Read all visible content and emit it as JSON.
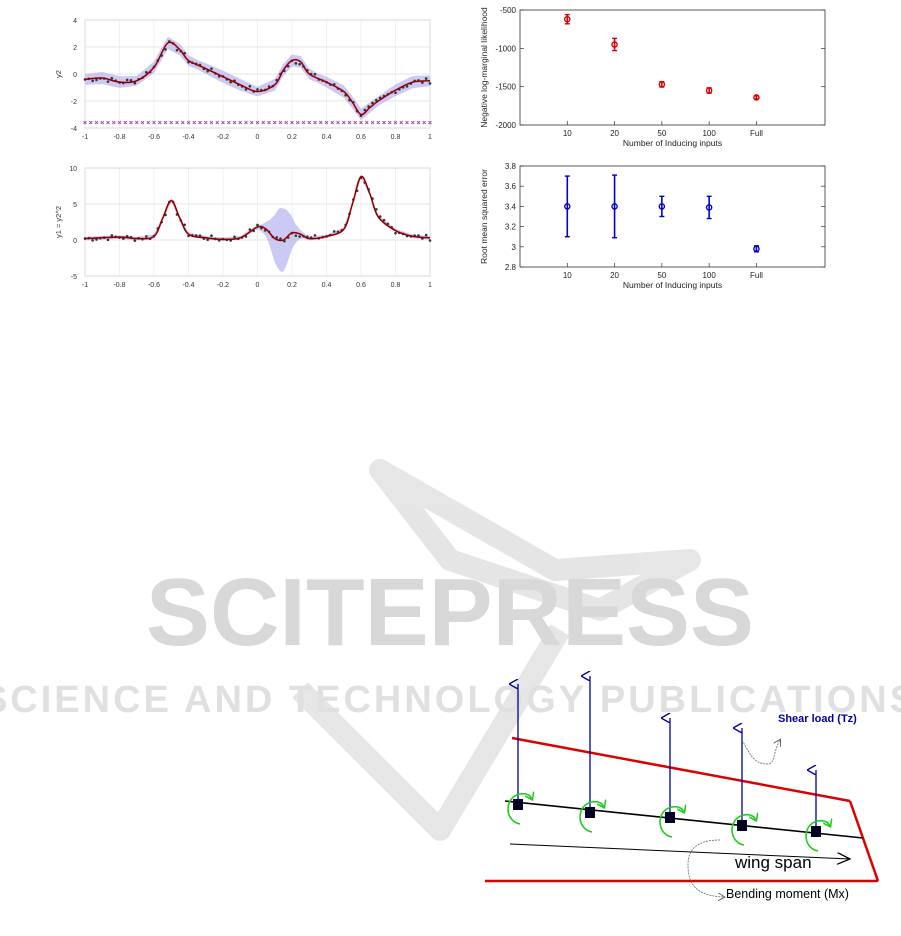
{
  "watermark": {
    "main": "SCITEPRESS",
    "sub": "SCIENCE AND TECHNOLOGY PUBLICATIONS"
  },
  "chart_data": [
    {
      "type": "line",
      "panel": "top-left",
      "ylabel": "y2",
      "xlim": [
        -1,
        1
      ],
      "ylim": [
        -4,
        4
      ],
      "xticks": [
        "-1",
        "-0.8",
        "-0.6",
        "-0.4",
        "-0.2",
        "0",
        "0.2",
        "0.4",
        "0.6",
        "0.8",
        "1"
      ],
      "yticks": [
        "-4",
        "-2",
        "0",
        "2",
        "4"
      ],
      "grid": true,
      "series": [
        {
          "role": "mean",
          "color": "#cc0000",
          "x": [
            -1,
            -0.9,
            -0.8,
            -0.7,
            -0.6,
            -0.52,
            -0.45,
            -0.4,
            -0.3,
            -0.2,
            -0.1,
            0,
            0.1,
            0.15,
            0.2,
            0.25,
            0.3,
            0.4,
            0.5,
            0.55,
            0.6,
            0.65,
            0.7,
            0.8,
            0.9,
            1
          ],
          "y": [
            -0.4,
            -0.3,
            -0.6,
            -0.5,
            0.5,
            2.3,
            1.8,
            1,
            0.4,
            -0.2,
            -0.8,
            -1.3,
            -0.8,
            0.3,
            1.0,
            0.9,
            0,
            -0.6,
            -1.3,
            -2.1,
            -3.0,
            -2.5,
            -2.0,
            -1.2,
            -0.6,
            -0.5
          ]
        }
      ],
      "inducing_inputs_level": -3.6
    },
    {
      "type": "line",
      "panel": "bottom-left",
      "ylabel": "y1 = y2^2",
      "xlim": [
        -1,
        1
      ],
      "ylim": [
        -5,
        10
      ],
      "xticks": [
        "-1",
        "-0.8",
        "-0.6",
        "-0.4",
        "-0.2",
        "0",
        "0.2",
        "0.4",
        "0.6",
        "0.8",
        "1"
      ],
      "yticks": [
        "-5",
        "0",
        "5",
        "10"
      ],
      "grid": true,
      "series": [
        {
          "role": "mean",
          "color": "#cc0000",
          "x": [
            -1,
            -0.8,
            -0.7,
            -0.6,
            -0.55,
            -0.5,
            -0.45,
            -0.4,
            -0.3,
            -0.2,
            -0.1,
            0,
            0.05,
            0.1,
            0.15,
            0.2,
            0.25,
            0.3,
            0.4,
            0.5,
            0.55,
            0.6,
            0.65,
            0.7,
            0.8,
            0.9,
            1
          ],
          "y": [
            0.2,
            0.4,
            0.2,
            0.5,
            3.0,
            5.5,
            3.0,
            0.8,
            0.3,
            0.1,
            0.3,
            1.8,
            1.5,
            0.2,
            0,
            1.0,
            0.8,
            0.2,
            0.5,
            1.5,
            5.0,
            8.8,
            6.5,
            3.2,
            1.3,
            0.5,
            0.3
          ]
        }
      ]
    },
    {
      "type": "scatter",
      "panel": "top-right",
      "categories": [
        "10",
        "20",
        "50",
        "100",
        "Full"
      ],
      "values": [
        -620,
        -950,
        -1470,
        -1550,
        -1640
      ],
      "errors": [
        60,
        80,
        35,
        35,
        20
      ],
      "color": "#dd0000",
      "xlabel": "Number of Inducing inputs",
      "ylabel": "Negative log-marginal likelihood",
      "ylim": [
        -2000,
        -500
      ],
      "yticks": [
        "-500",
        "-1000",
        "-1500",
        "-2000"
      ]
    },
    {
      "type": "scatter",
      "panel": "bottom-right",
      "categories": [
        "10",
        "20",
        "50",
        "100",
        "Full"
      ],
      "values": [
        3.4,
        3.4,
        3.4,
        3.39,
        2.98
      ],
      "errors": [
        0.3,
        0.31,
        0.1,
        0.11,
        0.03
      ],
      "color": "#0000cc",
      "xlabel": "Number of Inducing inputs",
      "ylabel": "Root mean squared error",
      "ylim": [
        2.8,
        3.8
      ],
      "yticks": [
        "3.8",
        "3.6",
        "3.4",
        "3.2",
        "3",
        "2.8"
      ]
    }
  ],
  "diagram": {
    "shear_label": "Shear load (Tz)",
    "span_label": "wing span",
    "moment_label": "Bending moment (Mx)",
    "colors": {
      "edge": "#dd0000",
      "force": "#000099",
      "moment": "#22cc22",
      "node": "#000022"
    }
  }
}
